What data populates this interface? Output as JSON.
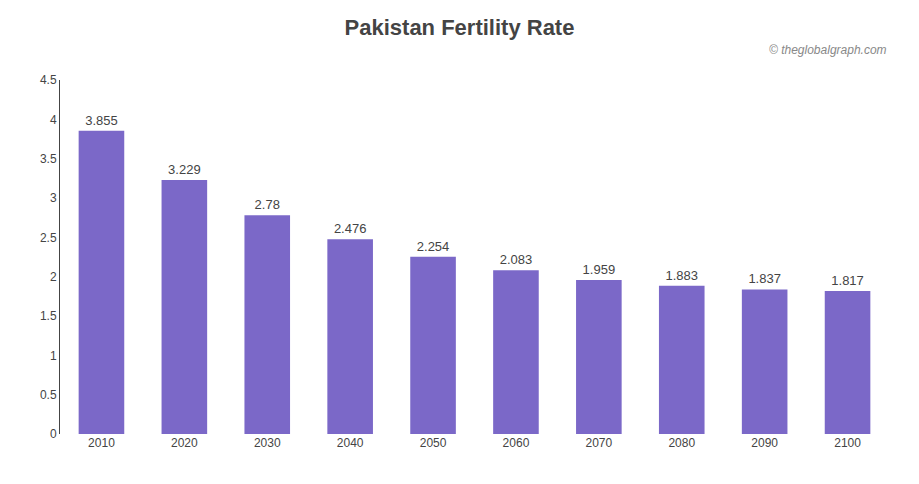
{
  "chart_data": {
    "type": "bar",
    "title": "Pakistan Fertility Rate",
    "annotations": [
      "© theglobalgraph.com"
    ],
    "categories": [
      "2010",
      "2020",
      "2030",
      "2040",
      "2050",
      "2060",
      "2070",
      "2080",
      "2090",
      "2100"
    ],
    "values": [
      3.855,
      3.229,
      2.78,
      2.476,
      2.254,
      2.083,
      1.959,
      1.883,
      1.837,
      1.817
    ],
    "color": "#7B68C8",
    "ylim": [
      0,
      4.5
    ],
    "yticks": [
      0,
      0.5,
      1,
      1.5,
      2,
      2.5,
      3,
      3.5,
      4,
      4.5
    ],
    "grid": false,
    "data_labels": true
  }
}
